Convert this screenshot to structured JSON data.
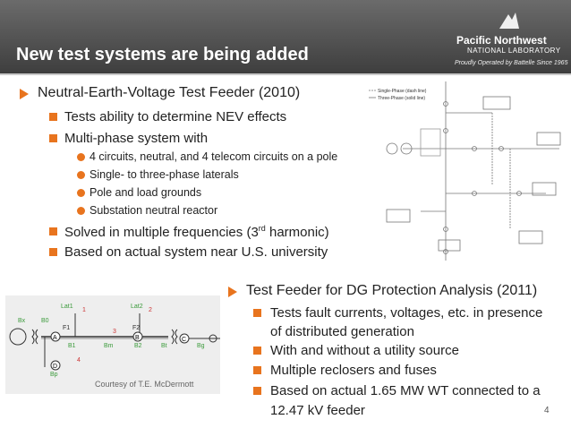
{
  "header": {
    "title": "New test systems are being added",
    "logo_name": "Pacific Northwest",
    "logo_sub": "NATIONAL LABORATORY",
    "tagline": "Proudly Operated by Battelle Since 1965"
  },
  "section1": {
    "heading": "Neutral-Earth-Voltage Test Feeder (2010)",
    "items": [
      "Tests ability to determine NEV effects",
      "Multi-phase system with"
    ],
    "subitems": [
      "4 circuits, neutral, and 4 telecom circuits on a pole",
      "Single- to three-phase laterals",
      "Pole and load grounds",
      "Substation neutral reactor"
    ],
    "harmonic": {
      "before": "Solved in multiple frequencies (3",
      "sup": "rd",
      "after": " harmonic)"
    },
    "last": "Based on actual system near U.S. university"
  },
  "diagram1": {
    "legend": [
      "Single-Phase (dash line)",
      "Three-Phase (solid line)"
    ]
  },
  "section2": {
    "heading": "Test Feeder for DG Protection Analysis (2011)",
    "items": [
      [
        "Tests fault currents, voltages, etc. in presence",
        "of distributed generation"
      ],
      [
        "With and without a utility source"
      ],
      [
        "Multiple reclosers and fuses"
      ],
      [
        "Based on actual 1.65 MW WT connected to a",
        "12.47 kV feeder"
      ]
    ]
  },
  "diagram2": {
    "labels": [
      "Lat1",
      "Lat2",
      "Bx",
      "B0",
      "F1",
      "F2",
      "B1",
      "Bm",
      "B2",
      "Bt",
      "Bg",
      "Bp"
    ],
    "numbers": [
      "1",
      "2",
      "3",
      "4"
    ],
    "nodes": [
      "A",
      "B",
      "C",
      "D"
    ],
    "credit": "Courtesy of T.E. McDermott"
  },
  "page_number": "4"
}
